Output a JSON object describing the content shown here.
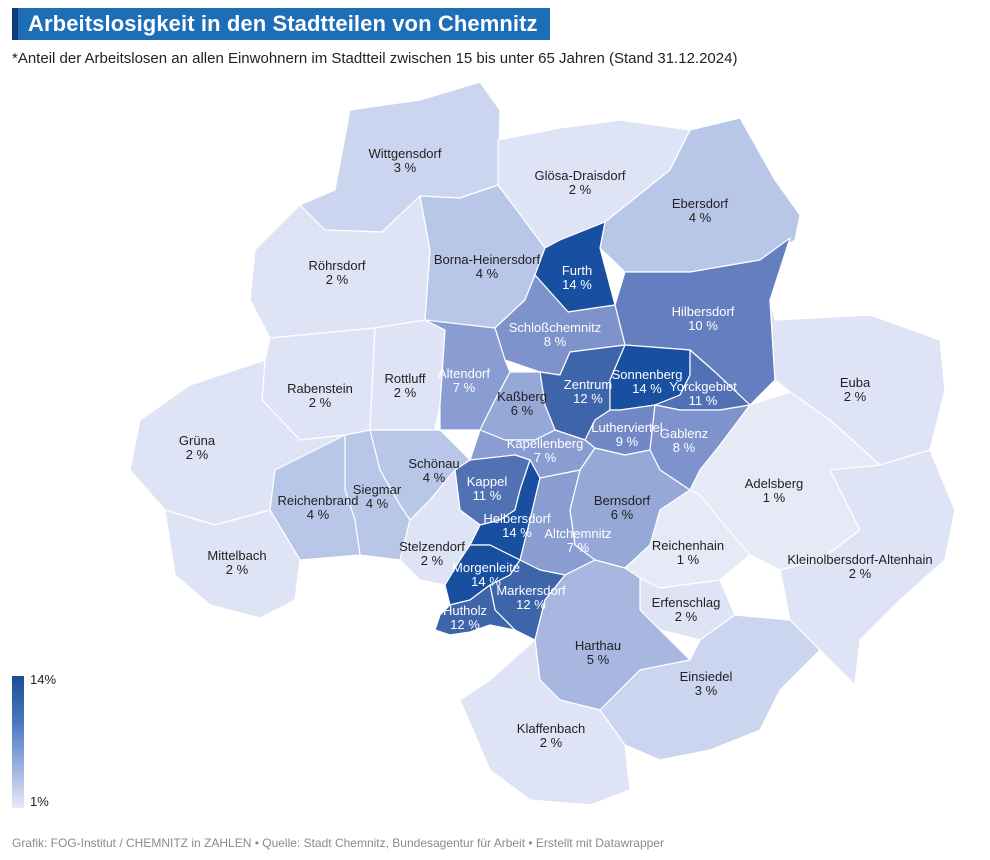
{
  "header": {
    "title": "Arbeitslosigkeit in den Stadtteilen von Chemnitz",
    "subtitle": "*Anteil der Arbeitslosen an allen Einwohnern im Stadtteil zwischen 15 bis unter 65 Jahren (Stand 31.12.2024)"
  },
  "legend": {
    "max_label": "14%",
    "min_label": "1%",
    "color_max": "#1a4e96",
    "color_min": "#e6eaf7"
  },
  "footer": "Grafik: FOG-Institut / CHEMNITZ in ZAHLEN • Quelle: Stadt Chemnitz, Bundesagentur für Arbeit • Erstellt mit Datawrapper",
  "districts": [
    {
      "id": "wittgensdorf",
      "name": "Wittgensdorf",
      "value": 3,
      "label": "3 %"
    },
    {
      "id": "gloesa",
      "name": "Glösa-Draisdorf",
      "value": 2,
      "label": "2 %"
    },
    {
      "id": "ebersdorf",
      "name": "Ebersdorf",
      "value": 4,
      "label": "4 %"
    },
    {
      "id": "roehrsdorf",
      "name": "Röhrsdorf",
      "value": 2,
      "label": "2 %"
    },
    {
      "id": "borna",
      "name": "Borna-Heinersdorf",
      "value": 4,
      "label": "4 %"
    },
    {
      "id": "furth",
      "name": "Furth",
      "value": 14,
      "label": "14 %"
    },
    {
      "id": "hilbersdorf",
      "name": "Hilbersdorf",
      "value": 10,
      "label": "10 %"
    },
    {
      "id": "schlosschemnitz",
      "name": "Schloßchemnitz",
      "value": 8,
      "label": "8 %"
    },
    {
      "id": "rabenstein",
      "name": "Rabenstein",
      "value": 2,
      "label": "2 %"
    },
    {
      "id": "rottluff",
      "name": "Rottluff",
      "value": 2,
      "label": "2 %"
    },
    {
      "id": "altendorf",
      "name": "Altendorf",
      "value": 7,
      "label": "7 %"
    },
    {
      "id": "zentrum",
      "name": "Zentrum",
      "value": 12,
      "label": "12 %"
    },
    {
      "id": "sonnenberg",
      "name": "Sonnenberg",
      "value": 14,
      "label": "14 %"
    },
    {
      "id": "yorckgebiet",
      "name": "Yorckgebiet",
      "value": 11,
      "label": "11 %"
    },
    {
      "id": "euba",
      "name": "Euba",
      "value": 2,
      "label": "2 %"
    },
    {
      "id": "kassberg",
      "name": "Kaßberg",
      "value": 6,
      "label": "6 %"
    },
    {
      "id": "grueena",
      "name": "Grüna",
      "value": 2,
      "label": "2 %"
    },
    {
      "id": "lutherviertel",
      "name": "Lutherviertel",
      "value": 9,
      "label": "9 %"
    },
    {
      "id": "gablenz",
      "name": "Gablenz",
      "value": 8,
      "label": "8 %"
    },
    {
      "id": "kappellenberg",
      "name": "Kapellenberg",
      "value": 7,
      "label": "7 %"
    },
    {
      "id": "schoenau",
      "name": "Schönau",
      "value": 4,
      "label": "4 %"
    },
    {
      "id": "adelsberg",
      "name": "Adelsberg",
      "value": 1,
      "label": "1 %"
    },
    {
      "id": "kappel",
      "name": "Kappel",
      "value": 11,
      "label": "11 %"
    },
    {
      "id": "siegmar",
      "name": "Siegmar",
      "value": 4,
      "label": "4 %"
    },
    {
      "id": "reichenbrand",
      "name": "Reichenbrand",
      "value": 4,
      "label": "4 %"
    },
    {
      "id": "bernsdorf",
      "name": "Bernsdorf",
      "value": 6,
      "label": "6 %"
    },
    {
      "id": "helbersdorf",
      "name": "Helbersdorf",
      "value": 14,
      "label": "14 %"
    },
    {
      "id": "altchemnitz",
      "name": "Altchemnitz",
      "value": 7,
      "label": "7 %"
    },
    {
      "id": "reichenhain",
      "name": "Reichenhain",
      "value": 1,
      "label": "1 %"
    },
    {
      "id": "mittelbach",
      "name": "Mittelbach",
      "value": 2,
      "label": "2 %"
    },
    {
      "id": "stelzendorf",
      "name": "Stelzendorf",
      "value": 2,
      "label": "2 %"
    },
    {
      "id": "kleinolbersdorf",
      "name": "Kleinolbersdorf-Altenhain",
      "value": 2,
      "label": "2 %"
    },
    {
      "id": "morgenleite",
      "name": "Morgenleite",
      "value": 14,
      "label": "14 %"
    },
    {
      "id": "markersdorf",
      "name": "Markersdorf",
      "value": 12,
      "label": "12 %"
    },
    {
      "id": "erfenschlag",
      "name": "Erfenschlag",
      "value": 2,
      "label": "2 %"
    },
    {
      "id": "hutholz",
      "name": "Hutholz",
      "value": 12,
      "label": "12 %"
    },
    {
      "id": "harthau",
      "name": "Harthau",
      "value": 5,
      "label": "5 %"
    },
    {
      "id": "einsiedel",
      "name": "Einsiedel",
      "value": 3,
      "label": "3 %"
    },
    {
      "id": "klaffenbach",
      "name": "Klaffenbach",
      "value": 2,
      "label": "2 %"
    }
  ]
}
